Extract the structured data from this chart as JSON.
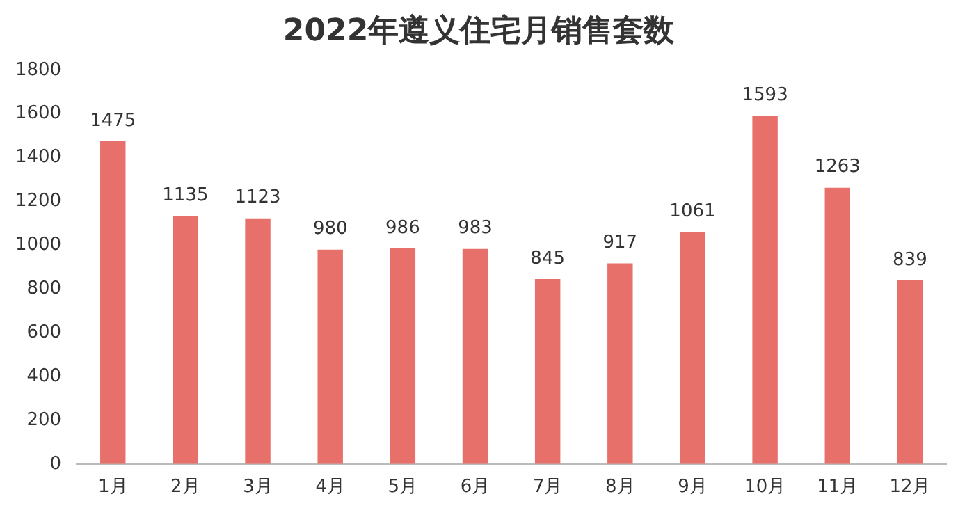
{
  "chart_data": {
    "type": "bar",
    "title": "2022年遵义住宅月销售套数",
    "categories": [
      "1月",
      "2月",
      "3月",
      "4月",
      "5月",
      "6月",
      "7月",
      "8月",
      "9月",
      "10月",
      "11月",
      "12月"
    ],
    "values": [
      1475,
      1135,
      1123,
      980,
      986,
      983,
      845,
      917,
      1061,
      1593,
      1263,
      839
    ],
    "color": "#e8706a",
    "ylim": [
      0,
      1800
    ],
    "yticks": [
      0,
      200,
      400,
      600,
      800,
      1000,
      1200,
      1400,
      1600,
      1800
    ],
    "grid": false,
    "legend": false,
    "data_labels": true
  }
}
